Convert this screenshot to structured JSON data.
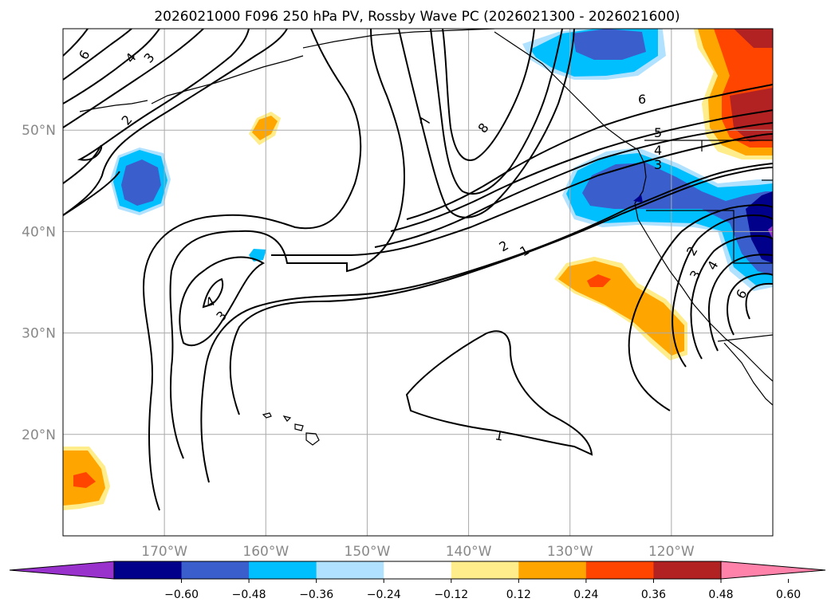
{
  "title": "2026021000 F096 250 hPa PV, Rossby Wave PC (2026021300 - 2026021600)",
  "map": {
    "lon_range": [
      -180,
      -110
    ],
    "lat_range": [
      10,
      60
    ],
    "lon_ticks": [
      {
        "value": -170,
        "label": "170°W"
      },
      {
        "value": -160,
        "label": "160°W"
      },
      {
        "value": -150,
        "label": "150°W"
      },
      {
        "value": -140,
        "label": "140°W"
      },
      {
        "value": -130,
        "label": "130°W"
      },
      {
        "value": -120,
        "label": "120°W"
      }
    ],
    "lat_ticks": [
      {
        "value": 20,
        "label": "20°N"
      },
      {
        "value": 30,
        "label": "30°N"
      },
      {
        "value": 40,
        "label": "40°N"
      },
      {
        "value": 50,
        "label": "50°N"
      }
    ],
    "grid": true
  },
  "colorbar": {
    "extend": "both",
    "colors": [
      "#9932cc",
      "#00008b",
      "#3a5fcd",
      "#00bfff",
      "#b0e2ff",
      "#ffffff",
      "#ffec8b",
      "#ffa500",
      "#ff4500",
      "#b22222",
      "#ff82ab"
    ],
    "levels": [
      "−0.60",
      "−0.48",
      "−0.36",
      "−0.24",
      "−0.12",
      "0.12",
      "0.24",
      "0.36",
      "0.48",
      "0.60"
    ]
  },
  "contour_labels": [
    "6",
    "4",
    "3",
    "2",
    "7",
    "8",
    "6",
    "5",
    "4",
    "3",
    "2",
    "1",
    "4",
    "3",
    "2",
    "3",
    "4",
    "6",
    "1"
  ],
  "colors": {
    "light_blue": "#b0e2ff",
    "deep_sky_blue": "#00bfff",
    "royal_blue": "#3a5fcd",
    "navy": "#00008b",
    "dark_orchid": "#9932cc",
    "light_yellow": "#ffec8b",
    "orange": "#ffa500",
    "orange_red": "#ff4500",
    "firebrick": "#b22222"
  }
}
